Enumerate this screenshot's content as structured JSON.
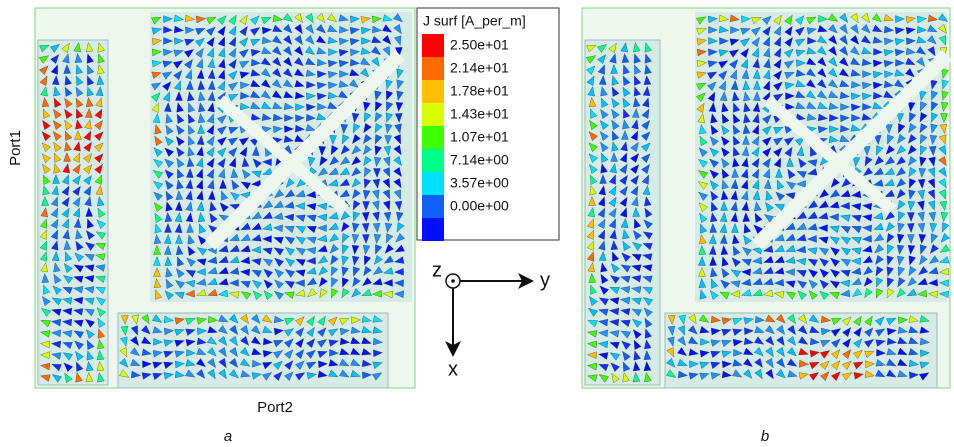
{
  "figure": {
    "panels": [
      {
        "caption": "a",
        "ports": [
          "Port1",
          "Port2"
        ]
      },
      {
        "caption": "b"
      }
    ],
    "legend": {
      "title": "J surf [A_per_m]",
      "labels": [
        "2.50e+01",
        "2.14e+01",
        "1.78e+01",
        "1.43e+01",
        "1.07e+01",
        "7.14e+00",
        "3.57e+00",
        "0.00e+00"
      ]
    },
    "axes": {
      "z": "z",
      "y": "y",
      "x": "x"
    }
  }
}
